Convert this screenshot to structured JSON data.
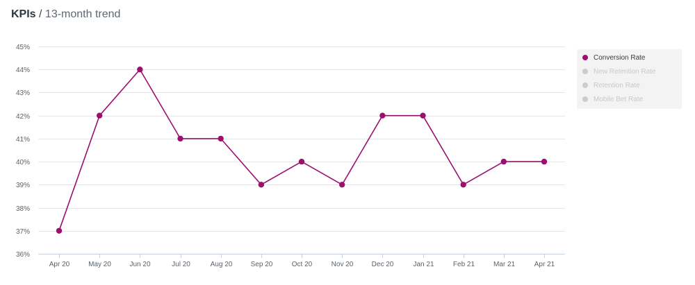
{
  "header": {
    "title_bold": "KPIs",
    "separator": " / ",
    "title_light": "13-month trend"
  },
  "colors": {
    "active": "#9c0f6e",
    "inactive": "#cccccc",
    "grid": "#e3e6ea",
    "axis": "#c9d3e0"
  },
  "legend": {
    "items": [
      {
        "label": "Conversion Rate",
        "active": true
      },
      {
        "label": "New Retention Rate",
        "active": false
      },
      {
        "label": "Retention Rate",
        "active": false
      },
      {
        "label": "Mobile Bet Rate",
        "active": false
      }
    ]
  },
  "chart_data": {
    "type": "line",
    "categories": [
      "Apr 20",
      "May 20",
      "Jun 20",
      "Jul 20",
      "Aug 20",
      "Sep 20",
      "Oct 20",
      "Nov 20",
      "Dec 20",
      "Jan 21",
      "Feb 21",
      "Mar 21",
      "Apr 21"
    ],
    "series": [
      {
        "name": "Conversion Rate",
        "values": [
          37,
          42,
          44,
          41,
          41,
          39,
          40,
          39,
          42,
          42,
          39,
          40,
          40
        ]
      }
    ],
    "ylim": [
      36,
      45
    ],
    "yticks": [
      "36%",
      "37%",
      "38%",
      "39%",
      "40%",
      "41%",
      "42%",
      "43%",
      "44%",
      "45%"
    ],
    "grid": true,
    "legend_position": "right"
  }
}
